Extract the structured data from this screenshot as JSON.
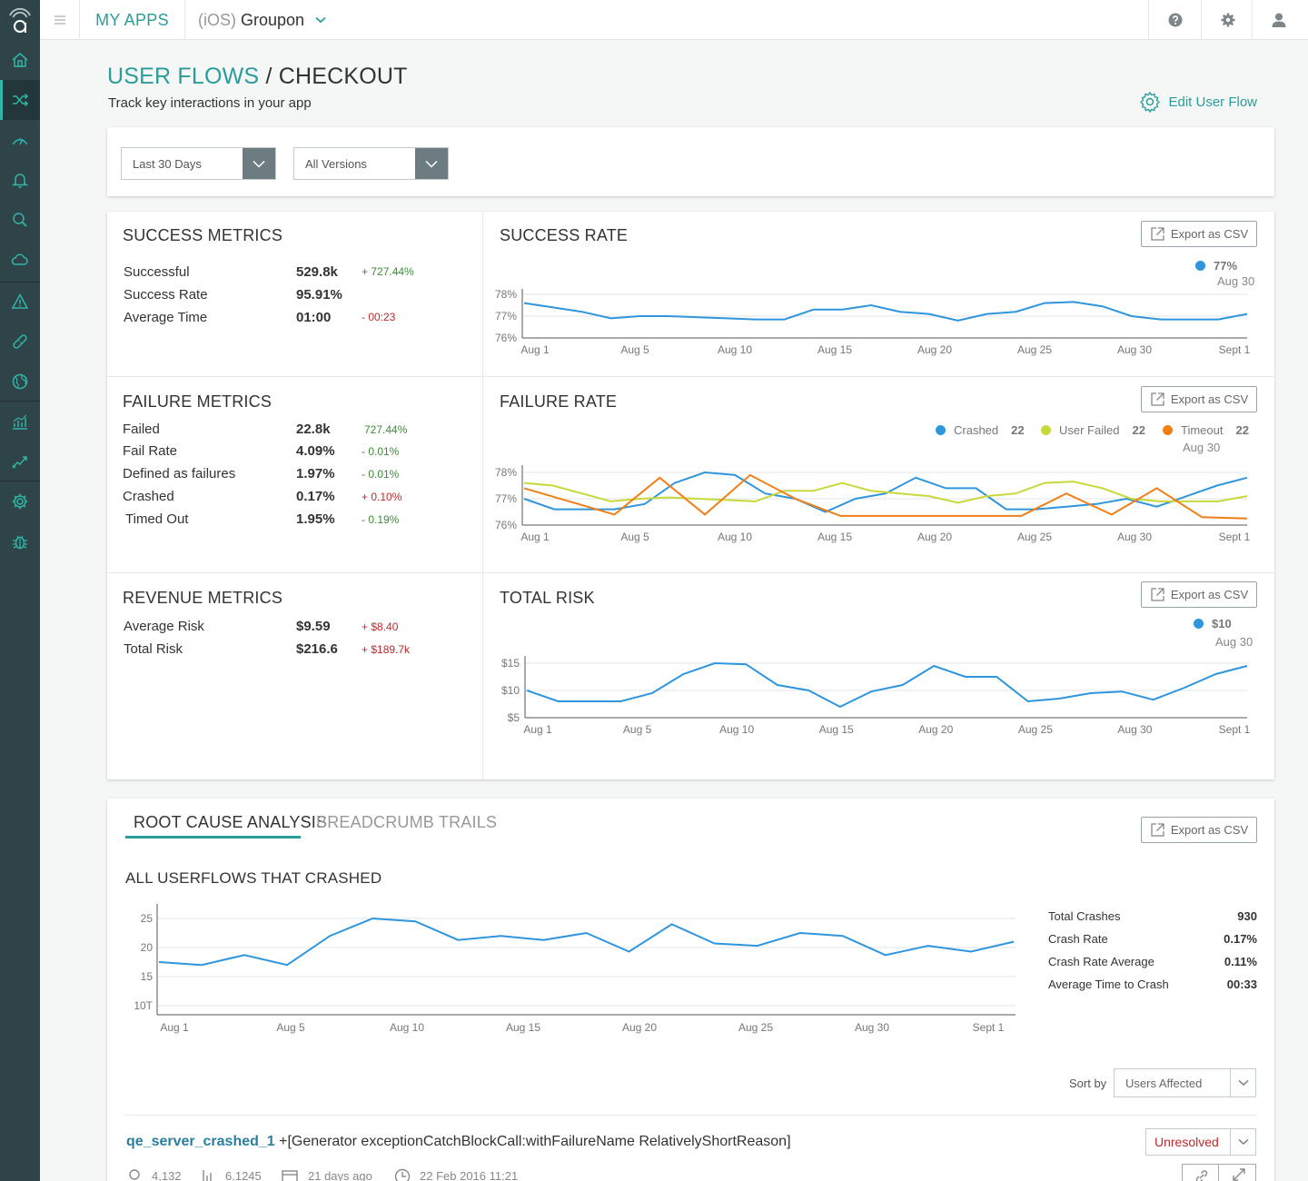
{
  "nav": {
    "my_apps": "MY APPS",
    "app_platform": "(iOS)",
    "app_name": "Groupon"
  },
  "header": {
    "breadcrumb": "USER FLOWS",
    "separator": "/",
    "title": "CHECKOUT",
    "subtitle": "Track key interactions in your app",
    "edit_label": "Edit User Flow"
  },
  "filters": {
    "date_range": "Last 30 Days",
    "version": "All Versions"
  },
  "export_label": "Export as CSV",
  "success_metrics": {
    "title": "SUCCESS METRICS",
    "rows": [
      {
        "label": "Successful",
        "value": "529.8k",
        "delta": "+ 727.44%"
      },
      {
        "label": "Success Rate",
        "value": "95.91%",
        "delta": ""
      },
      {
        "label": "Average Time",
        "value": "01:00",
        "delta": "- 00:23"
      }
    ]
  },
  "failure_metrics": {
    "title": "FAILURE METRICS",
    "rows": [
      {
        "label": "Failed",
        "value": "22.8k",
        "delta": "727.44%"
      },
      {
        "label": "Fail Rate",
        "value": "4.09%",
        "delta": "-  0.01%"
      },
      {
        "label": "Defined as failures",
        "value": "1.97%",
        "delta": "-  0.01%"
      },
      {
        "label": "Crashed",
        "value": "0.17%",
        "delta": "+ 0.10%"
      },
      {
        "label": "Timed Out",
        "value": "1.95%",
        "delta": "- 0.19%"
      }
    ]
  },
  "revenue_metrics": {
    "title": "REVENUE METRICS",
    "rows": [
      {
        "label": "Average Risk",
        "value": "$9.59",
        "delta": "+ $8.40"
      },
      {
        "label": "Total Risk",
        "value": "$216.6",
        "delta": "+ $189.7k"
      }
    ]
  },
  "success_rate": {
    "title": "SUCCESS RATE",
    "legend_value": "77%",
    "legend_date": "Aug 30"
  },
  "failure_rate": {
    "title": "FAILURE RATE",
    "legend": [
      {
        "name": "Crashed",
        "value": "22",
        "color": "#2f95dc"
      },
      {
        "name": "User Failed",
        "value": "22",
        "color": "#c7d93a"
      },
      {
        "name": "Timeout",
        "value": "22",
        "color": "#f07f17"
      }
    ],
    "legend_date": "Aug 30"
  },
  "total_risk": {
    "title": "TOTAL RISK",
    "legend_value": "$10",
    "legend_date": "Aug 30"
  },
  "root_cause": {
    "tab_active": "ROOT CAUSE ANALYSIS",
    "tab_inactive": "BREADCRUMB TRAILS",
    "chart_title": "ALL USERFLOWS THAT CRASHED",
    "stats": [
      {
        "label": "Total Crashes",
        "value": "930"
      },
      {
        "label": "Crash Rate",
        "value": "0.17%"
      },
      {
        "label": "Crash Rate Average",
        "value": "0.11%"
      },
      {
        "label": "Average Time to Crash",
        "value": "00:33"
      }
    ],
    "sort_label": "Sort by",
    "sort_value": "Users Affected",
    "crash": {
      "name": "qe_server_crashed_1",
      "signature": "+[Generator exceptionCatchBlockCall:withFailureName RelativelyShortReason]",
      "status": "Unresolved",
      "meta": [
        "4,132",
        "6.1245",
        "21 days ago",
        "22 Feb 2016 11:21"
      ]
    }
  },
  "colors": {
    "accent": "#2a9d9a",
    "sidebar": "#2e4448",
    "series_blue": "#2f95dc",
    "series_green": "#c7d93a",
    "series_orange": "#f07f17"
  },
  "chart_data": [
    {
      "id": "success_rate",
      "type": "line",
      "x_ticks": [
        "Aug 1",
        "Aug 5",
        "Aug 10",
        "Aug 15",
        "Aug 20",
        "Aug 25",
        "Aug 30",
        "Sept 1"
      ],
      "y_ticks": [
        "78%",
        "77%",
        "76%"
      ],
      "ylim": [
        76,
        78
      ],
      "series": [
        {
          "color": "#2f95dc",
          "values": [
            77.6,
            77.4,
            77.2,
            76.9,
            77.0,
            77.0,
            76.95,
            76.9,
            76.85,
            76.85,
            77.3,
            77.3,
            77.5,
            77.2,
            77.1,
            76.8,
            77.1,
            77.2,
            77.6,
            77.65,
            77.45,
            77.0,
            76.85,
            76.85,
            76.85,
            77.1
          ]
        }
      ]
    },
    {
      "id": "failure_rate",
      "type": "line",
      "x_ticks": [
        "Aug 1",
        "Aug 5",
        "Aug 10",
        "Aug 15",
        "Aug 20",
        "Aug 25",
        "Aug 30",
        "Sept 1"
      ],
      "y_ticks": [
        "78%",
        "77%",
        "76%"
      ],
      "ylim": [
        76,
        78
      ],
      "series": [
        {
          "name": "Crashed",
          "color": "#2f95dc",
          "values": [
            77.0,
            76.6,
            76.6,
            76.6,
            76.8,
            77.6,
            78.0,
            77.9,
            77.2,
            77.0,
            76.5,
            77.0,
            77.2,
            77.8,
            77.4,
            77.4,
            76.6,
            76.6,
            76.7,
            76.8,
            77.0,
            76.7,
            77.1,
            77.5,
            77.8
          ]
        },
        {
          "name": "User Failed",
          "color": "#c7d93a",
          "values": [
            77.6,
            77.5,
            77.2,
            76.9,
            77.0,
            77.05,
            77.0,
            76.95,
            76.9,
            77.3,
            77.3,
            77.6,
            77.3,
            77.2,
            77.1,
            76.85,
            77.1,
            77.2,
            77.6,
            77.65,
            77.4,
            77.0,
            76.9,
            76.9,
            76.9,
            77.1
          ]
        },
        {
          "name": "Timeout",
          "color": "#f07f17",
          "values": [
            77.4,
            76.9,
            76.4,
            77.8,
            76.4,
            77.9,
            77.0,
            76.35,
            76.35,
            76.35,
            76.35,
            76.35,
            77.2,
            76.4,
            77.4,
            76.3,
            76.25
          ]
        }
      ]
    },
    {
      "id": "total_risk",
      "type": "line",
      "x_ticks": [
        "Aug 1",
        "Aug 5",
        "Aug 10",
        "Aug 15",
        "Aug 20",
        "Aug 25",
        "Aug 30",
        "Sept 1"
      ],
      "y_ticks": [
        "$15",
        "$10",
        "$5"
      ],
      "ylim": [
        5,
        15
      ],
      "series": [
        {
          "color": "#2f95dc",
          "values": [
            10,
            8,
            8,
            8,
            9.5,
            13,
            15,
            14.8,
            11,
            10,
            7,
            9.8,
            11,
            14.5,
            12.5,
            12.5,
            8,
            8.5,
            9.5,
            9.8,
            8.3,
            10.5,
            13,
            14.5
          ]
        }
      ]
    },
    {
      "id": "crashed",
      "type": "line",
      "x_ticks": [
        "Aug 1",
        "Aug 5",
        "Aug 10",
        "Aug 15",
        "Aug 20",
        "Aug 25",
        "Aug 30",
        "Sept 1"
      ],
      "y_ticks": [
        "25",
        "20",
        "15",
        "10T"
      ],
      "series": [
        {
          "color": "#2f95dc",
          "values": [
            17.5,
            17.0,
            18.7,
            17.0,
            22.0,
            25.0,
            24.5,
            21.3,
            22.0,
            21.3,
            22.5,
            19.3,
            24.0,
            20.7,
            20.3,
            22.5,
            22.0,
            18.7,
            20.3,
            19.3,
            21.0
          ]
        }
      ]
    }
  ]
}
